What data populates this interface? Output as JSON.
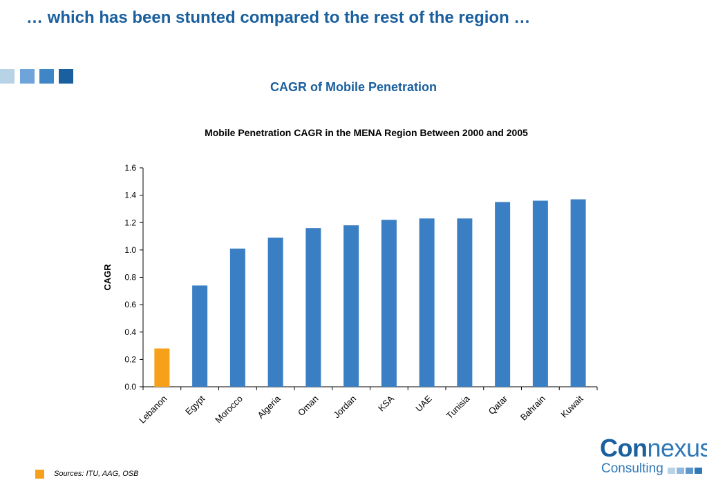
{
  "slide": {
    "headline": "… which has been stunted compared to the rest of the region …",
    "section_title": "CAGR of Mobile Penetration",
    "sources": "Sources: ITU, AAG, OSB"
  },
  "decor": {
    "square_colors": [
      "#b9d3e6",
      "#6fa4db",
      "#3e86c6",
      "#1a5f9e"
    ]
  },
  "colors": {
    "bar": "#3a7fc3",
    "highlight": "#f7a11a",
    "axis": "#000000"
  },
  "chart_data": {
    "type": "bar",
    "title": "Mobile Penetration CAGR in the MENA Region Between 2000 and 2005",
    "xlabel": "",
    "ylabel": "CAGR",
    "ylim": [
      0,
      1.6
    ],
    "yticks": [
      "0.0",
      "0.2",
      "0.4",
      "0.6",
      "0.8",
      "1.0",
      "1.2",
      "1.4",
      "1.6"
    ],
    "grid": false,
    "categories": [
      "Lebanon",
      "Egypt",
      "Morocco",
      "Algeria",
      "Oman",
      "Jordan",
      "KSA",
      "UAE",
      "Tunisia",
      "Qatar",
      "Bahrain",
      "Kuwait"
    ],
    "values": [
      0.28,
      0.74,
      1.01,
      1.09,
      1.16,
      1.18,
      1.22,
      1.23,
      1.23,
      1.35,
      1.36,
      1.37
    ],
    "highlight_category": "Lebanon"
  },
  "logo": {
    "word_strong": "Con",
    "word_light": "nexus",
    "sub": "Consulting",
    "square_colors": [
      "#b9d3e6",
      "#8fb8de",
      "#5e97cc",
      "#2e78b7"
    ]
  }
}
